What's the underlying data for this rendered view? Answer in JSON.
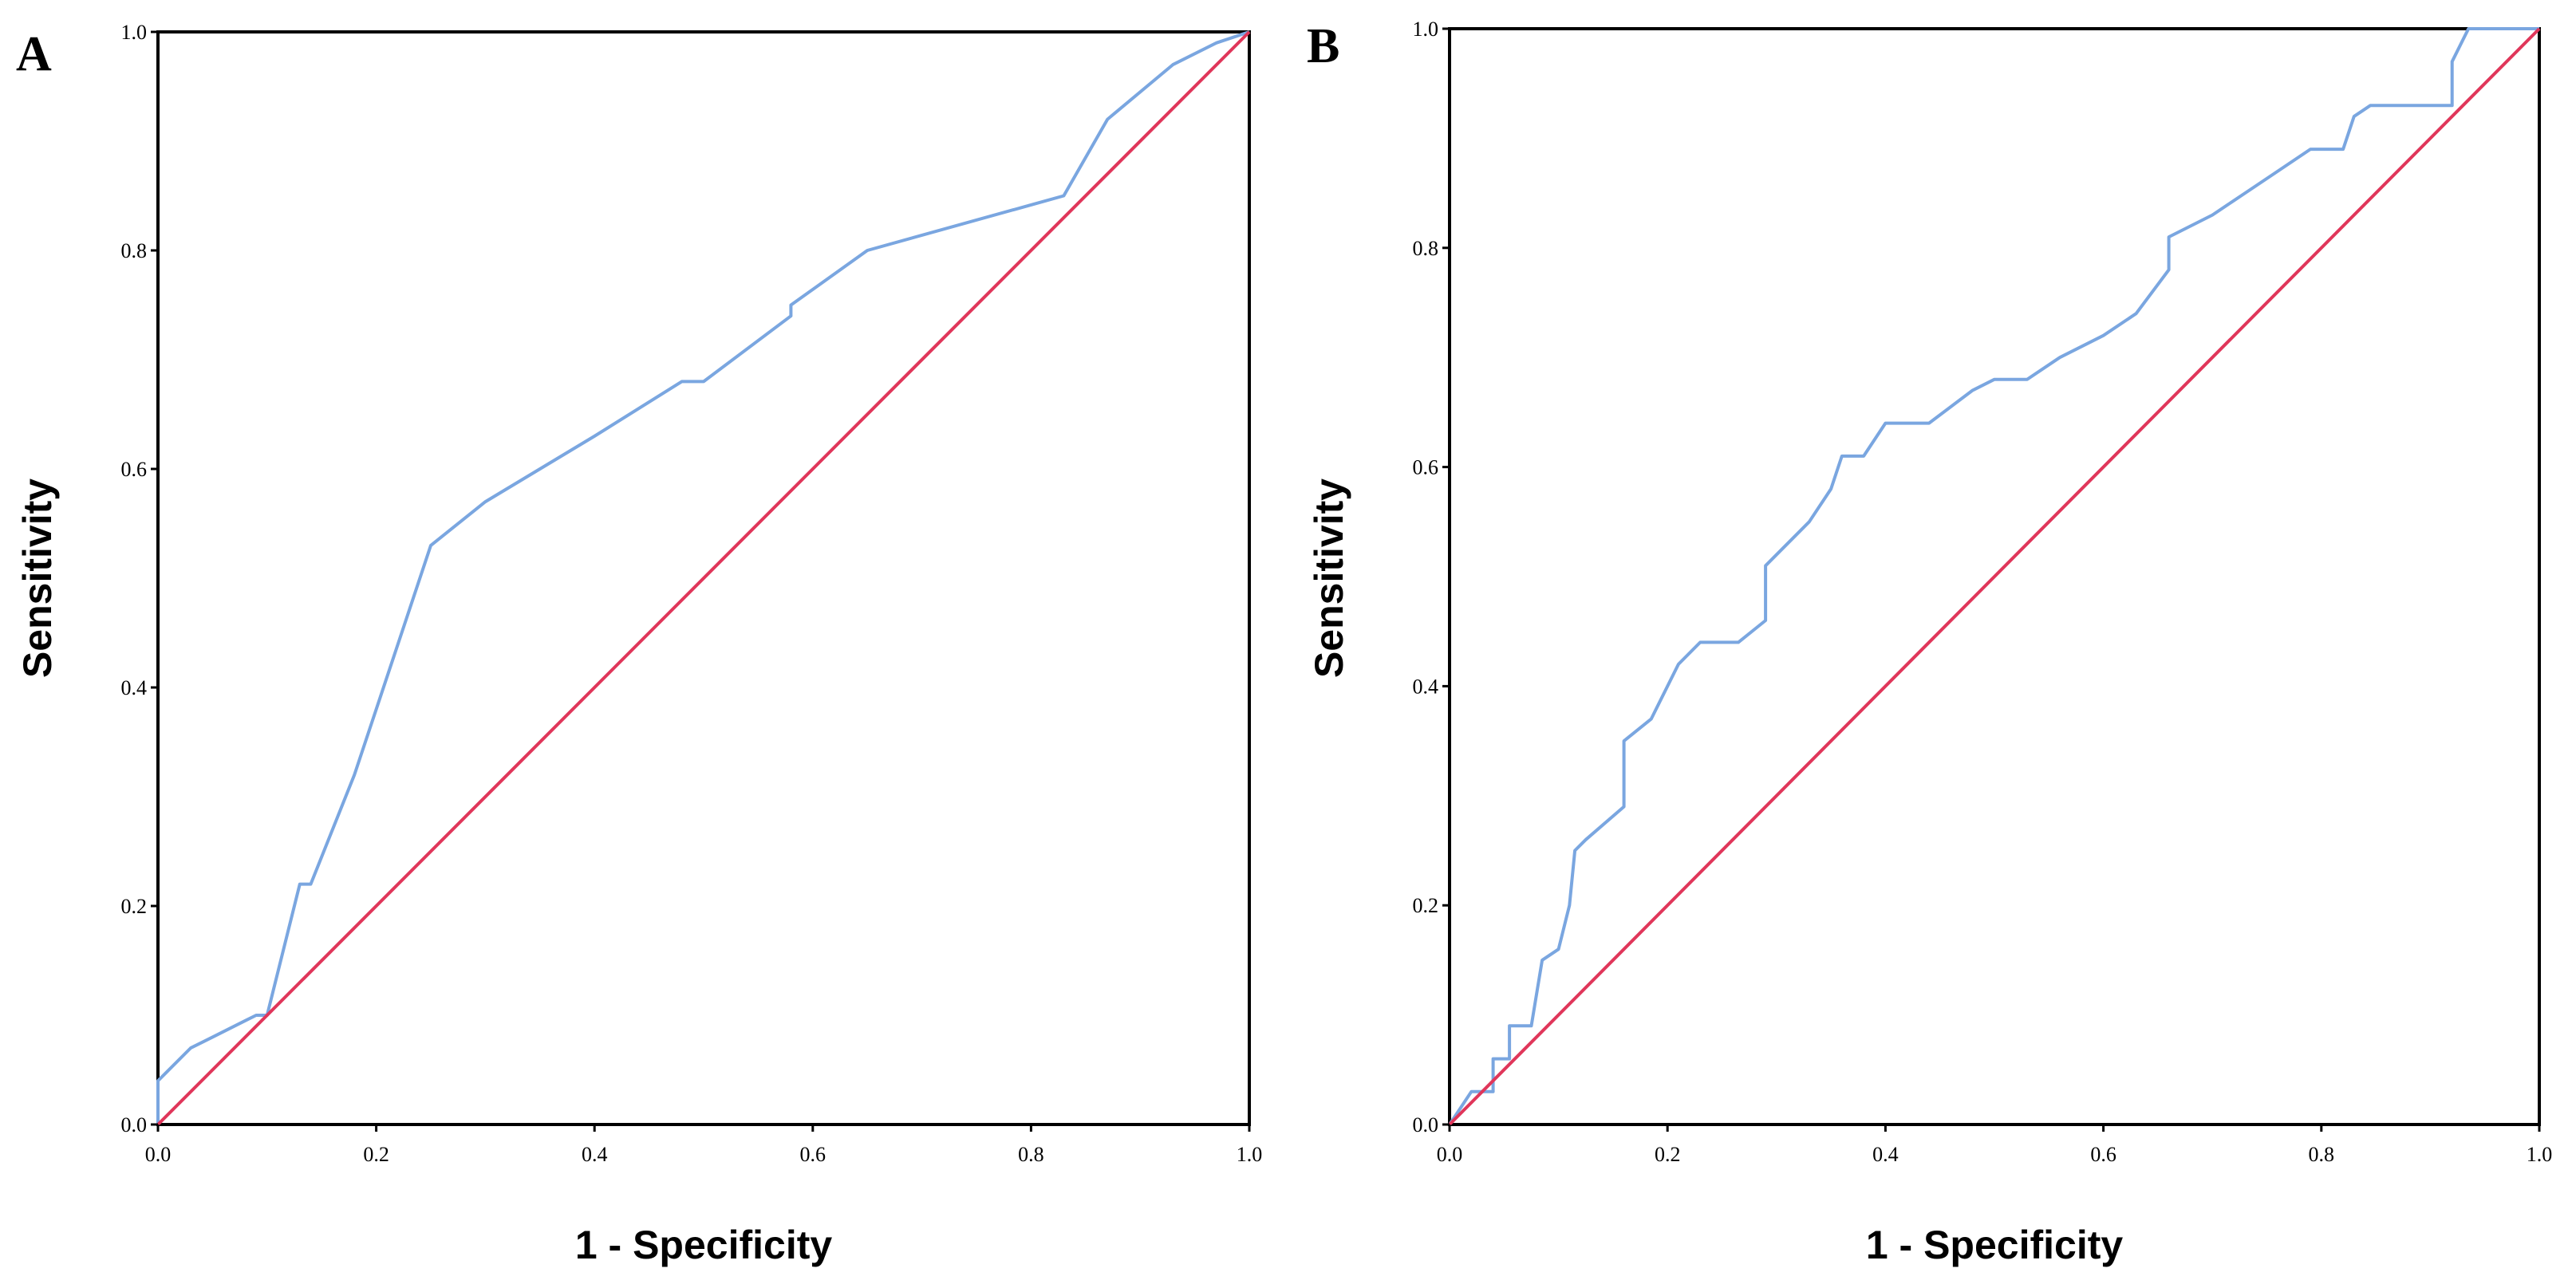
{
  "colors": {
    "roc": "#7aa6e0",
    "reference": "#e0365a",
    "frame": "#000000"
  },
  "chart_data": [
    {
      "panel": "A",
      "type": "line",
      "xlabel": "1 - Specificity",
      "ylabel": "Sensitivity",
      "xlim": [
        0,
        1
      ],
      "ylim": [
        0,
        1
      ],
      "xticks": [
        "0.0",
        "0.2",
        "0.4",
        "0.6",
        "0.8",
        "1.0"
      ],
      "yticks": [
        "0.0",
        "0.2",
        "0.4",
        "0.6",
        "0.8",
        "1.0"
      ],
      "grid": false,
      "series": [
        {
          "role": "roc",
          "x": [
            0.0,
            0.0,
            0.03,
            0.05,
            0.08,
            0.09,
            0.1,
            0.13,
            0.14,
            0.18,
            0.2,
            0.25,
            0.3,
            0.4,
            0.48,
            0.5,
            0.58,
            0.58,
            0.65,
            0.83,
            0.87,
            0.93,
            0.97,
            1.0
          ],
          "y": [
            0.0,
            0.04,
            0.07,
            0.08,
            0.095,
            0.1,
            0.1,
            0.22,
            0.22,
            0.32,
            0.38,
            0.53,
            0.57,
            0.63,
            0.68,
            0.68,
            0.74,
            0.75,
            0.8,
            0.85,
            0.92,
            0.97,
            0.99,
            1.0
          ]
        },
        {
          "role": "reference",
          "x": [
            0,
            1
          ],
          "y": [
            0,
            1
          ]
        }
      ]
    },
    {
      "panel": "B",
      "type": "line",
      "xlabel": "1 - Specificity",
      "ylabel": "Sensitivity",
      "xlim": [
        0,
        1
      ],
      "ylim": [
        0,
        1
      ],
      "xticks": [
        "0.0",
        "0.2",
        "0.4",
        "0.6",
        "0.8",
        "1.0"
      ],
      "yticks": [
        "0.0",
        "0.2",
        "0.4",
        "0.6",
        "0.8",
        "1.0"
      ],
      "grid": false,
      "series": [
        {
          "role": "roc",
          "x": [
            0.0,
            0.02,
            0.02,
            0.04,
            0.04,
            0.055,
            0.055,
            0.075,
            0.085,
            0.1,
            0.11,
            0.115,
            0.125,
            0.16,
            0.16,
            0.185,
            0.21,
            0.23,
            0.265,
            0.29,
            0.29,
            0.33,
            0.35,
            0.36,
            0.38,
            0.4,
            0.44,
            0.48,
            0.5,
            0.53,
            0.56,
            0.6,
            0.63,
            0.66,
            0.66,
            0.7,
            0.73,
            0.76,
            0.79,
            0.82,
            0.83,
            0.845,
            0.9,
            0.92,
            0.92,
            0.935,
            1.0
          ],
          "y": [
            0.0,
            0.03,
            0.03,
            0.03,
            0.06,
            0.06,
            0.09,
            0.09,
            0.15,
            0.16,
            0.2,
            0.25,
            0.26,
            0.29,
            0.35,
            0.37,
            0.42,
            0.44,
            0.44,
            0.46,
            0.51,
            0.55,
            0.58,
            0.61,
            0.61,
            0.64,
            0.64,
            0.67,
            0.68,
            0.68,
            0.7,
            0.72,
            0.74,
            0.78,
            0.81,
            0.83,
            0.85,
            0.87,
            0.89,
            0.89,
            0.92,
            0.93,
            0.93,
            0.93,
            0.97,
            1.0,
            1.0
          ]
        },
        {
          "role": "reference",
          "x": [
            0,
            1
          ],
          "y": [
            0,
            1
          ]
        }
      ]
    }
  ]
}
